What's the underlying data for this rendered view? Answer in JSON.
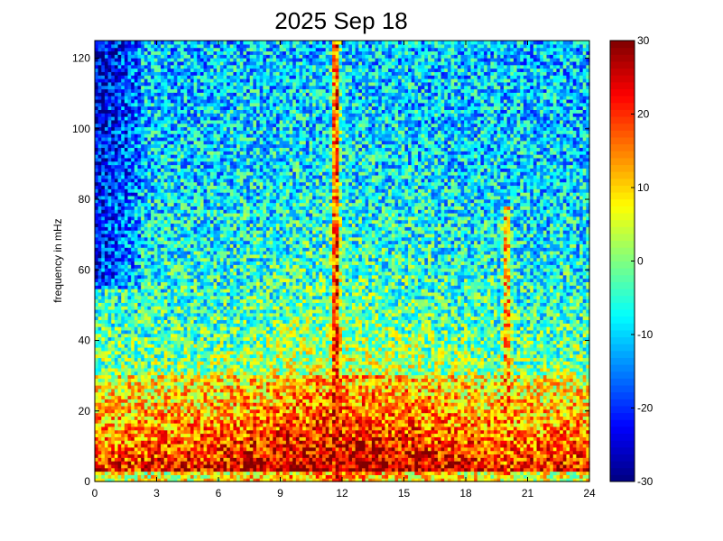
{
  "chart_data": {
    "type": "heatmap",
    "title": "2025 Sep 18",
    "xlabel": "",
    "ylabel": "frequency in mHz",
    "xlim": [
      0,
      24
    ],
    "ylim": [
      0,
      125
    ],
    "xticks": [
      0,
      3,
      6,
      9,
      12,
      15,
      18,
      21,
      24
    ],
    "yticks": [
      0,
      20,
      40,
      60,
      80,
      100,
      120
    ],
    "colorbar": {
      "range": [
        -30,
        30
      ],
      "ticks": [
        30,
        20,
        10,
        0,
        -10,
        -20,
        -30
      ],
      "colormap": "jet"
    },
    "grid": false,
    "features": [
      {
        "kind": "vertical-streak",
        "x": 11.7,
        "y_range": [
          0,
          125
        ],
        "level": 22
      },
      {
        "kind": "vertical-streak",
        "x": 20.0,
        "y_range": [
          0,
          78
        ],
        "level": 15
      },
      {
        "kind": "low-power-region",
        "x_range": [
          0,
          2
        ],
        "y_range": [
          60,
          125
        ],
        "level": -20
      },
      {
        "kind": "high-power-band",
        "x_range": [
          0,
          24
        ],
        "y_range": [
          0,
          30
        ],
        "level": 28
      }
    ]
  }
}
